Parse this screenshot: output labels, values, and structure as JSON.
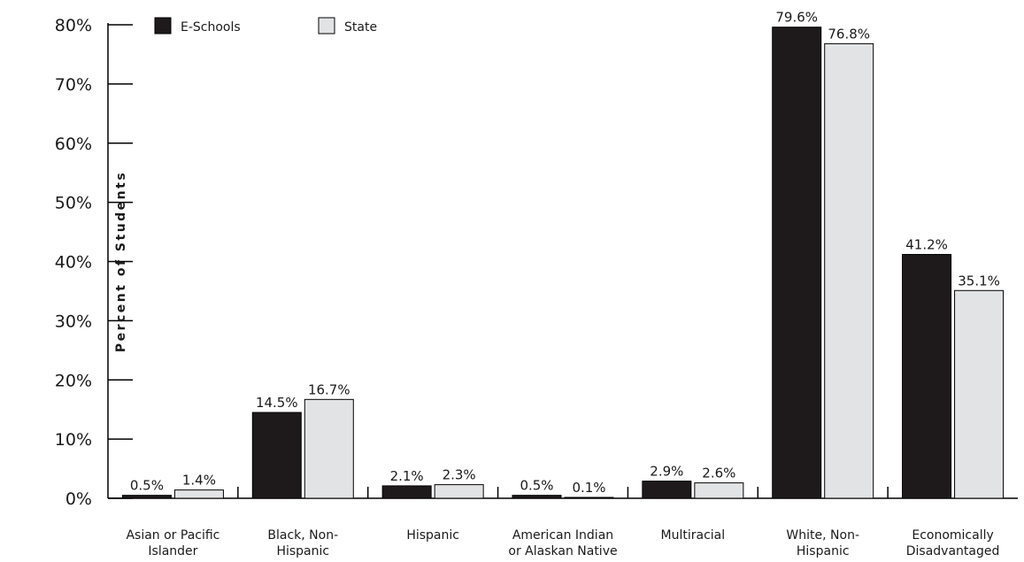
{
  "chart_data": {
    "type": "bar",
    "title": "",
    "xlabel": "",
    "ylabel": "Percent of Students",
    "ylim": [
      0,
      80
    ],
    "yticks": [
      "0%",
      "10%",
      "20%",
      "30%",
      "40%",
      "50%",
      "60%",
      "70%",
      "80%"
    ],
    "grid": false,
    "legend_position": "top-left",
    "categories": [
      [
        "Asian or Pacific",
        "Islander"
      ],
      [
        "Black, Non-",
        "Hispanic"
      ],
      [
        "Hispanic"
      ],
      [
        "American Indian",
        "or Alaskan Native"
      ],
      [
        "Multiracial"
      ],
      [
        "White, Non-",
        "Hispanic"
      ],
      [
        "Economically",
        "Disadvantaged"
      ]
    ],
    "series": [
      {
        "name": "E-Schools",
        "color": "#1e1a1b",
        "values": [
          0.5,
          14.5,
          2.1,
          0.5,
          2.9,
          79.6,
          41.2
        ],
        "labels": [
          "0.5%",
          "14.5%",
          "2.1%",
          "0.5%",
          "2.9%",
          "79.6%",
          "41.2%"
        ]
      },
      {
        "name": "State",
        "color": "#e2e3e4",
        "values": [
          1.4,
          16.7,
          2.3,
          0.1,
          2.6,
          76.8,
          35.1
        ],
        "labels": [
          "1.4%",
          "16.7%",
          "2.3%",
          "0.1%",
          "2.6%",
          "76.8%",
          "35.1%"
        ]
      }
    ]
  }
}
